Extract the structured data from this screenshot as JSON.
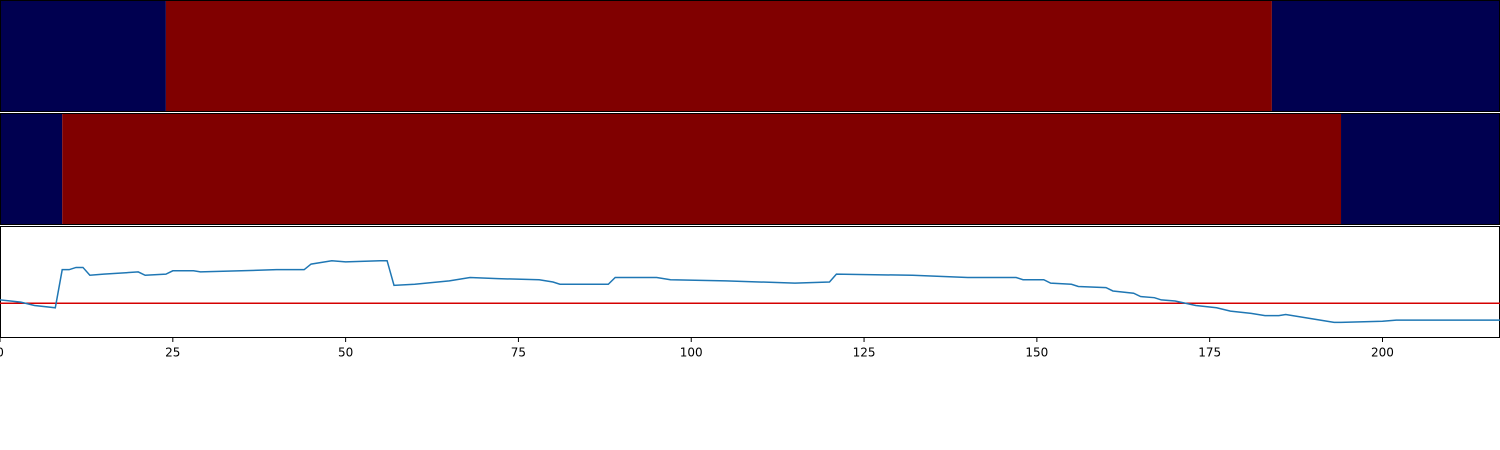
{
  "chart_data": {
    "type": "binary-strips-line",
    "xlim": [
      0,
      217
    ],
    "xticks": [
      0,
      25,
      50,
      75,
      100,
      125,
      150,
      175,
      200
    ],
    "strip_colors": [
      "#000050",
      "#800000"
    ],
    "strips": [
      {
        "segments": [
          {
            "x0": 0,
            "x1": 24,
            "value": 0
          },
          {
            "x0": 24,
            "x1": 184,
            "value": 1
          },
          {
            "x0": 184,
            "x1": 217,
            "value": 0
          }
        ]
      },
      {
        "segments": [
          {
            "x0": 0,
            "x1": 9,
            "value": 0
          },
          {
            "x0": 9,
            "x1": 194,
            "value": 1
          },
          {
            "x0": 194,
            "x1": 217,
            "value": 0
          }
        ]
      }
    ],
    "ylim": [
      0,
      1
    ],
    "threshold": 0.31,
    "threshold_color": "#d40000",
    "line_color": "#1f77b4",
    "x": [
      0,
      3,
      5,
      8,
      9,
      10,
      11,
      12,
      13,
      15,
      20,
      21,
      24,
      25,
      28,
      29,
      40,
      44,
      45,
      48,
      50,
      55,
      56,
      57,
      60,
      65,
      68,
      72,
      78,
      80,
      81,
      88,
      89,
      95,
      97,
      105,
      115,
      120,
      121,
      132,
      140,
      147,
      148,
      151,
      152,
      155,
      156,
      160,
      161,
      164,
      165,
      167,
      168,
      170,
      173,
      176,
      178,
      181,
      183,
      185,
      186,
      189,
      192,
      193,
      194,
      200,
      202,
      210,
      217
    ],
    "values": [
      0.34,
      0.32,
      0.29,
      0.27,
      0.61,
      0.61,
      0.63,
      0.63,
      0.56,
      0.57,
      0.59,
      0.56,
      0.57,
      0.6,
      0.6,
      0.59,
      0.61,
      0.61,
      0.66,
      0.69,
      0.68,
      0.69,
      0.69,
      0.47,
      0.48,
      0.51,
      0.54,
      0.53,
      0.52,
      0.5,
      0.48,
      0.48,
      0.54,
      0.54,
      0.52,
      0.51,
      0.49,
      0.5,
      0.57,
      0.56,
      0.54,
      0.54,
      0.52,
      0.52,
      0.49,
      0.48,
      0.46,
      0.45,
      0.42,
      0.4,
      0.37,
      0.36,
      0.34,
      0.33,
      0.29,
      0.27,
      0.24,
      0.22,
      0.2,
      0.2,
      0.21,
      0.18,
      0.15,
      0.14,
      0.14,
      0.15,
      0.16,
      0.16,
      0.16
    ]
  }
}
